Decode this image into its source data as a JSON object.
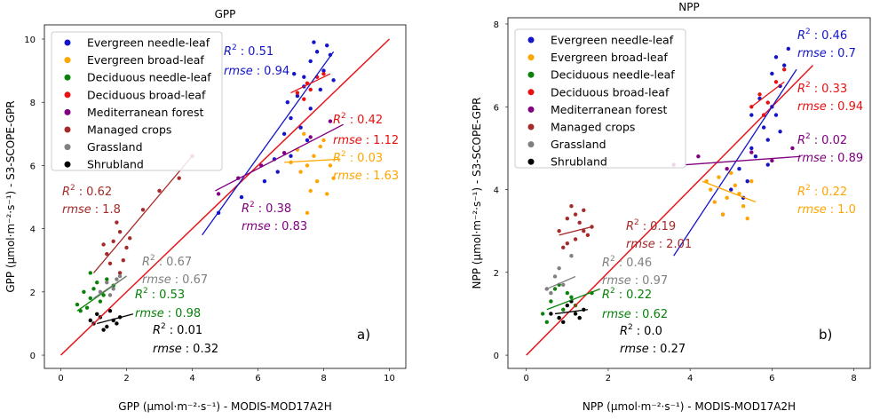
{
  "chart_data": [
    {
      "type": "scatter",
      "title": "GPP",
      "xlabel": "GPP (μmol·m⁻²·s⁻¹) - MODIS-MOD17A2H",
      "ylabel": "GPP (μmol·m⁻²·s⁻¹) - S3-SCOPE-GPR",
      "panel_label": "a)",
      "xlim": [
        -0.5,
        10.5
      ],
      "ylim": [
        -0.42,
        10.45
      ],
      "xticks": [
        0,
        2,
        4,
        6,
        8,
        10
      ],
      "yticks": [
        0,
        2,
        4,
        6,
        8,
        10
      ],
      "identity_line": [
        0,
        10
      ],
      "identity_color": "#e8161b",
      "grid": false,
      "stat_labels": {
        "r": "R",
        "sup": "2",
        "sep": ":",
        "rmse": "rmse"
      },
      "series": [
        {
          "name": "Evergreen needle-leaf",
          "color": "#1414c8",
          "x": [
            6.2,
            6.5,
            6.8,
            7.0,
            7.2,
            7.4,
            7.6,
            7.8,
            8.0,
            7.3,
            7.6,
            7.9,
            8.2,
            6.9,
            7.1,
            7.5,
            6.6,
            8.3,
            7.7,
            7.0,
            5.5,
            4.8,
            7.4,
            8.1
          ],
          "y": [
            5.5,
            6.2,
            7.0,
            7.5,
            8.2,
            8.8,
            9.3,
            9.6,
            9.0,
            7.2,
            7.8,
            8.4,
            9.5,
            8.0,
            8.9,
            6.8,
            5.8,
            8.7,
            9.9,
            6.3,
            5.0,
            4.5,
            8.5,
            9.8
          ],
          "fit": {
            "x": [
              4.3,
              8.3
            ],
            "y": [
              3.8,
              9.6
            ]
          },
          "stats": {
            "r2": "0.51",
            "rmse": "0.94"
          }
        },
        {
          "name": "Evergreen broad-leaf",
          "color": "#ffa500",
          "x": [
            7.2,
            7.5,
            7.8,
            8.0,
            7.4,
            7.7,
            8.2,
            7.6,
            7.3,
            8.1,
            7.9,
            7.5,
            7.0,
            8.3
          ],
          "y": [
            6.5,
            6.0,
            5.5,
            6.8,
            7.0,
            6.3,
            6.0,
            5.2,
            5.8,
            5.1,
            6.6,
            4.5,
            6.1,
            5.6
          ],
          "fit": {
            "x": [
              6.8,
              8.5
            ],
            "y": [
              6.1,
              6.2
            ]
          },
          "stats": {
            "r2": "0.03",
            "rmse": "1.63"
          }
        },
        {
          "name": "Deciduous needle-leaf",
          "color": "#0a820a",
          "x": [
            0.5,
            0.7,
            0.9,
            1.1,
            1.3,
            0.6,
            0.8,
            1.0,
            1.2,
            1.4,
            0.9,
            1.6
          ],
          "y": [
            1.6,
            2.0,
            1.8,
            2.3,
            1.9,
            1.4,
            1.5,
            2.1,
            1.7,
            2.4,
            2.6,
            2.2
          ],
          "fit": {
            "x": [
              0.5,
              2.0
            ],
            "y": [
              1.4,
              2.5
            ]
          },
          "stats": {
            "r2": "0.53",
            "rmse": "0.98"
          }
        },
        {
          "name": "Deciduous broad-leaf",
          "color": "#e81010",
          "x": [
            7.2,
            7.5,
            7.8,
            7.4,
            8.0,
            7.6
          ],
          "y": [
            8.3,
            8.6,
            8.8,
            8.1,
            8.9,
            8.4
          ],
          "fit": {
            "x": [
              7.0,
              8.2
            ],
            "y": [
              8.3,
              8.9
            ]
          },
          "stats": {
            "r2": "0.42",
            "rmse": "1.12"
          }
        },
        {
          "name": "Mediterranean forest",
          "color": "#800080",
          "x": [
            4.8,
            5.4,
            6.1,
            6.8,
            7.6,
            8.2
          ],
          "y": [
            5.1,
            5.6,
            6.0,
            6.4,
            6.9,
            7.4
          ],
          "fit": {
            "x": [
              4.7,
              8.6
            ],
            "y": [
              5.2,
              7.3
            ]
          },
          "stats": {
            "r2": "0.38",
            "rmse": "0.83"
          }
        },
        {
          "name": "Managed crops",
          "color": "#a52a2a",
          "x": [
            1.4,
            1.6,
            1.8,
            2.0,
            1.5,
            1.7,
            1.9,
            2.1,
            1.3,
            2.5,
            3.0,
            3.6,
            4.0,
            1.8
          ],
          "y": [
            3.2,
            3.6,
            3.9,
            3.4,
            2.9,
            4.2,
            3.0,
            3.7,
            3.5,
            4.6,
            5.2,
            5.6,
            6.3,
            2.6
          ],
          "fit": {
            "x": [
              1.0,
              4.0
            ],
            "y": [
              2.6,
              6.3
            ]
          },
          "stats": {
            "r2": "0.62",
            "rmse": "1.8"
          }
        },
        {
          "name": "Grassland",
          "color": "#808080",
          "x": [
            1.2,
            1.4,
            1.6,
            1.8,
            1.5,
            1.7
          ],
          "y": [
            2.0,
            2.3,
            2.1,
            2.5,
            1.9,
            2.4
          ],
          "fit": {
            "x": [
              1.0,
              2.0
            ],
            "y": [
              1.8,
              2.5
            ]
          },
          "stats": {
            "r2": "0.67",
            "rmse": "0.67"
          }
        },
        {
          "name": "Shrubland",
          "color": "#000000",
          "x": [
            1.0,
            1.2,
            1.4,
            1.6,
            1.1,
            1.3,
            1.5,
            1.7,
            0.9,
            1.8
          ],
          "y": [
            1.0,
            1.2,
            0.9,
            1.1,
            1.3,
            0.8,
            1.4,
            1.0,
            1.1,
            1.2
          ],
          "fit": {
            "x": [
              1.1,
              2.2
            ],
            "y": [
              1.0,
              1.3
            ]
          },
          "stats": {
            "r2": "0.01",
            "rmse": "0.32"
          }
        }
      ]
    },
    {
      "type": "scatter",
      "title": "NPP",
      "xlabel": "NPP (μmol·m⁻²·s⁻¹) - MODIS-MOD17A2H",
      "ylabel": "NPP (μmol·m⁻²·s⁻¹) - S3-SCOPE-GPR",
      "panel_label": "b)",
      "xlim": [
        -0.45,
        8.4
      ],
      "ylim": [
        -0.32,
        8.15
      ],
      "xticks": [
        0,
        2,
        4,
        6,
        8
      ],
      "yticks": [
        0,
        2,
        4,
        6,
        8
      ],
      "identity_line": [
        0,
        7
      ],
      "identity_color": "#e8161b",
      "grid": false,
      "stat_labels": {
        "r": "R",
        "sup": "2",
        "sep": ":",
        "rmse": "rmse"
      },
      "series": [
        {
          "name": "Evergreen needle-leaf",
          "color": "#1414c8",
          "x": [
            5.2,
            5.5,
            5.8,
            6.0,
            6.2,
            5.6,
            5.9,
            6.1,
            6.3,
            5.4,
            5.7,
            6.0,
            6.4,
            5.3,
            5.0,
            4.8,
            6.2,
            5.9,
            5.5,
            6.1
          ],
          "y": [
            4.5,
            5.0,
            5.5,
            6.0,
            6.5,
            4.8,
            5.2,
            5.8,
            7.0,
            4.2,
            6.2,
            6.8,
            7.4,
            3.8,
            4.0,
            3.4,
            5.4,
            4.6,
            5.8,
            7.2
          ],
          "fit": {
            "x": [
              3.6,
              6.6
            ],
            "y": [
              2.4,
              6.9
            ]
          },
          "stats": {
            "r2": "0.46",
            "rmse": "0.7"
          }
        },
        {
          "name": "Evergreen broad-leaf",
          "color": "#ffa500",
          "x": [
            4.5,
            4.7,
            4.9,
            5.1,
            5.3,
            5.5,
            4.8,
            5.0,
            5.2,
            4.6,
            5.4,
            4.4
          ],
          "y": [
            4.0,
            4.3,
            3.8,
            4.1,
            3.6,
            4.2,
            3.4,
            4.4,
            3.9,
            3.7,
            3.3,
            4.2
          ],
          "fit": {
            "x": [
              4.3,
              5.6
            ],
            "y": [
              4.2,
              3.7
            ]
          },
          "stats": {
            "r2": "0.22",
            "rmse": "1.0"
          }
        },
        {
          "name": "Deciduous needle-leaf",
          "color": "#0a820a",
          "x": [
            0.4,
            0.6,
            0.8,
            1.0,
            1.2,
            0.5,
            0.7,
            0.9,
            1.1,
            1.3,
            0.8,
            1.6
          ],
          "y": [
            1.0,
            1.3,
            0.9,
            1.5,
            1.2,
            0.8,
            1.6,
            1.1,
            1.4,
            0.9,
            1.7,
            1.5
          ],
          "fit": {
            "x": [
              0.5,
              1.8
            ],
            "y": [
              1.1,
              1.6
            ]
          },
          "stats": {
            "r2": "0.22",
            "rmse": "0.62"
          }
        },
        {
          "name": "Deciduous broad-leaf",
          "color": "#e81010",
          "x": [
            5.5,
            5.7,
            5.9,
            6.1,
            6.3,
            5.8
          ],
          "y": [
            6.0,
            6.3,
            6.1,
            6.6,
            6.9,
            5.8
          ],
          "fit": {
            "x": [
              5.5,
              6.3
            ],
            "y": [
              6.0,
              6.6
            ]
          },
          "stats": {
            "r2": "0.33",
            "rmse": "0.94"
          }
        },
        {
          "name": "Mediterranean forest",
          "color": "#800080",
          "x": [
            3.6,
            4.2,
            4.9,
            5.5,
            6.0,
            6.5
          ],
          "y": [
            4.6,
            4.8,
            4.5,
            4.9,
            4.7,
            5.0
          ],
          "fit": {
            "x": [
              3.9,
              6.7
            ],
            "y": [
              4.6,
              4.8
            ]
          },
          "stats": {
            "r2": "0.02",
            "rmse": "0.89"
          }
        },
        {
          "name": "Managed crops",
          "color": "#a52a2a",
          "x": [
            0.8,
            1.0,
            1.2,
            1.4,
            1.6,
            0.9,
            1.1,
            1.3,
            1.5,
            1.0,
            1.2,
            1.4
          ],
          "y": [
            3.0,
            3.3,
            2.8,
            3.5,
            3.1,
            2.6,
            3.6,
            3.2,
            2.9,
            2.7,
            3.4,
            3.0
          ],
          "fit": {
            "x": [
              0.8,
              1.6
            ],
            "y": [
              2.9,
              3.1
            ]
          },
          "stats": {
            "r2": "0.19",
            "rmse": "2.01"
          }
        },
        {
          "name": "Grassland",
          "color": "#808080",
          "x": [
            0.5,
            0.7,
            0.9,
            1.1,
            0.6,
            0.8
          ],
          "y": [
            1.6,
            1.9,
            1.7,
            2.4,
            1.5,
            2.1
          ],
          "fit": {
            "x": [
              0.5,
              1.2
            ],
            "y": [
              1.6,
              1.9
            ]
          },
          "stats": {
            "r2": "0.46",
            "rmse": "0.97"
          }
        },
        {
          "name": "Shrubland",
          "color": "#000000",
          "x": [
            0.6,
            0.8,
            1.0,
            1.2,
            1.4,
            0.9,
            1.1,
            1.3
          ],
          "y": [
            1.0,
            0.9,
            1.2,
            1.0,
            1.1,
            0.8,
            1.3,
            0.9
          ],
          "fit": {
            "x": [
              0.7,
              1.5
            ],
            "y": [
              1.0,
              1.1
            ]
          },
          "stats": {
            "r2": "0.0",
            "rmse": "0.27"
          }
        }
      ]
    }
  ]
}
